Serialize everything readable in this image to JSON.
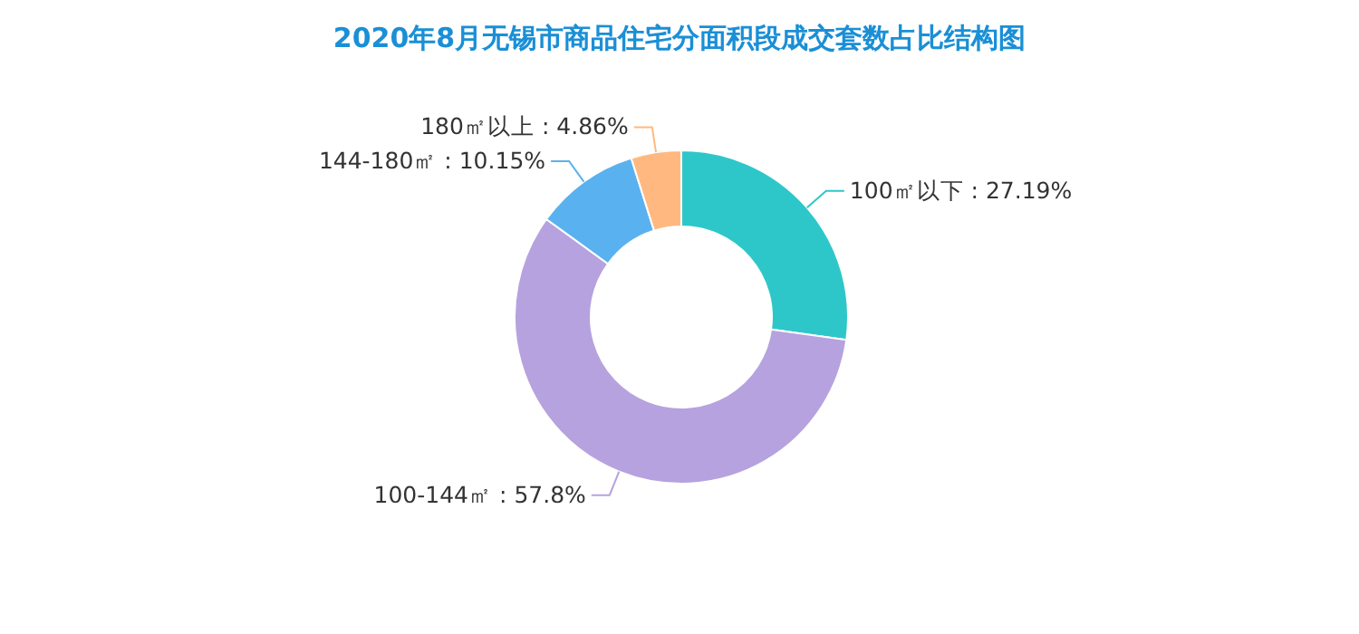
{
  "chart_data": {
    "type": "donut",
    "title": "2020年8月无锡市商品住宅分面积段成交套数占比结构图",
    "categories": [
      "100㎡以下",
      "100-144㎡",
      "144-180㎡",
      "180㎡以上"
    ],
    "values": [
      27.19,
      57.8,
      10.15,
      4.86
    ],
    "colors": [
      "#2ec7c9",
      "#b6a2de",
      "#5ab1ef",
      "#ffb980"
    ],
    "value_labels": [
      ": 27.19%",
      ": 57.8%",
      ": 10.15%",
      ": 4.86%"
    ]
  }
}
